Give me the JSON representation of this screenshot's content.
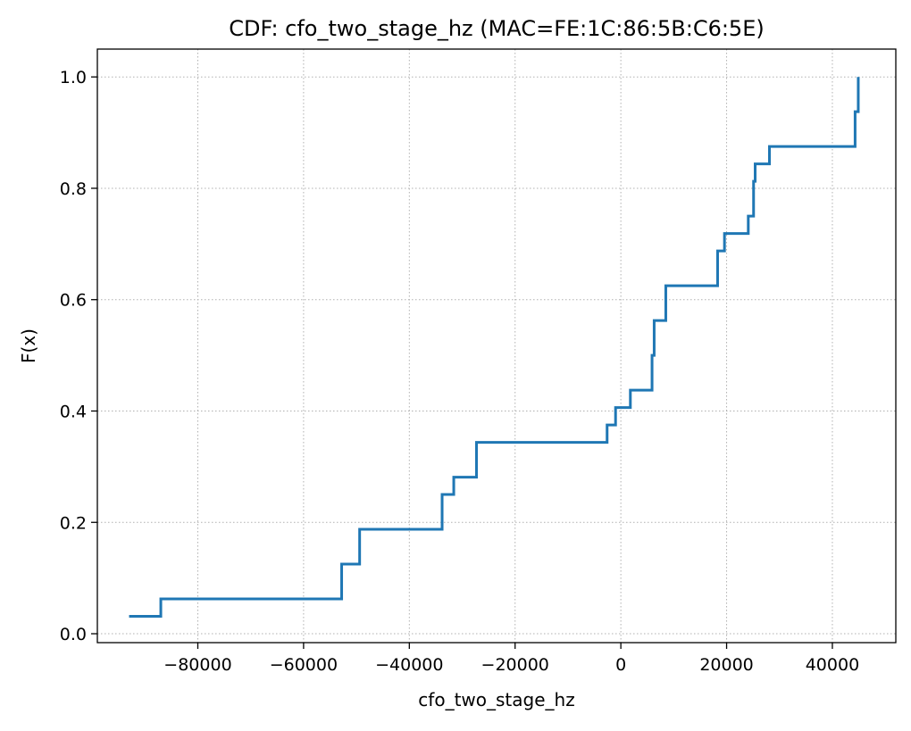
{
  "chart_data": {
    "type": "line",
    "drawstyle": "steps-post",
    "title": "CDF: cfo_two_stage_hz (MAC=FE:1C:86:5B:C6:5E)",
    "xlabel": "cfo_two_stage_hz",
    "ylabel": "F(x)",
    "xlim": [
      -99000,
      52000
    ],
    "ylim": [
      -0.016,
      1.05
    ],
    "xticks": [
      -80000,
      -60000,
      -40000,
      -20000,
      0,
      20000,
      40000
    ],
    "xtick_labels": [
      "−80000",
      "−60000",
      "−40000",
      "−20000",
      "0",
      "20000",
      "40000"
    ],
    "yticks": [
      0.0,
      0.2,
      0.4,
      0.6,
      0.8,
      1.0
    ],
    "ytick_labels": [
      "0.0",
      "0.2",
      "0.4",
      "0.6",
      "0.8",
      "1.0"
    ],
    "grid": true,
    "line_color": "#1f77b4",
    "series": [
      {
        "x": [
          -93000,
          -87000,
          -52800,
          -49400,
          -33800,
          -31600,
          -27300,
          -2600,
          -1000,
          1800,
          5900,
          6300,
          8500,
          18300,
          19600,
          24100,
          25100,
          25400,
          28100,
          44300,
          44900
        ],
        "values": [
          0.03125,
          0.0625,
          0.125,
          0.1875,
          0.25,
          0.28125,
          0.34375,
          0.375,
          0.40625,
          0.4375,
          0.5,
          0.5625,
          0.625,
          0.6875,
          0.71875,
          0.75,
          0.8125,
          0.84375,
          0.875,
          0.9375,
          1.0
        ]
      }
    ]
  }
}
